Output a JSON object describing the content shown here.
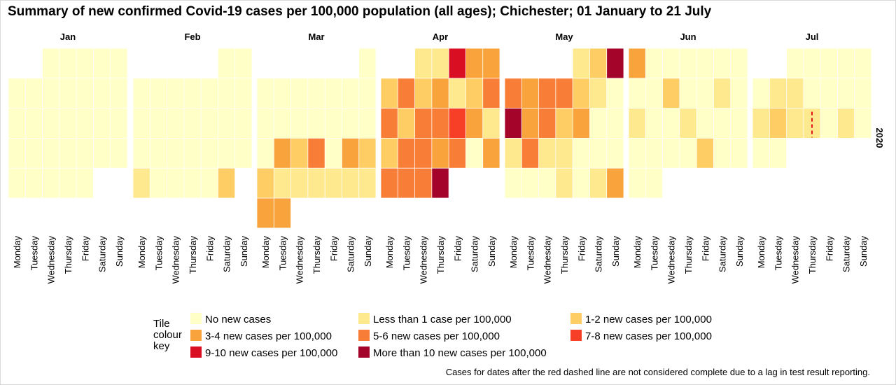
{
  "title": "Summary of new confirmed Covid-19 cases per 100,000 population (all ages); Chichester; 01 January to 21 July",
  "footnote": "Cases for dates after the red dashed line are not considered complete due to a lag in test result reporting.",
  "chart_data": {
    "type": "heatmap",
    "layout": "calendar",
    "year_label": "2020",
    "months": [
      {
        "label": "Jan",
        "weeks": [
          [
            null,
            null,
            0,
            0,
            0,
            0,
            0
          ],
          [
            0,
            0,
            0,
            0,
            0,
            0,
            0
          ],
          [
            0,
            0,
            0,
            0,
            0,
            0,
            0
          ],
          [
            0,
            0,
            0,
            0,
            0,
            0,
            0
          ],
          [
            0,
            0,
            0,
            0,
            0,
            null,
            null
          ]
        ]
      },
      {
        "label": "Feb",
        "weeks": [
          [
            null,
            null,
            null,
            null,
            null,
            0,
            0
          ],
          [
            0,
            0,
            0,
            0,
            0,
            0,
            0
          ],
          [
            0,
            0,
            0,
            0,
            0,
            0,
            0
          ],
          [
            0,
            0,
            0,
            0,
            0,
            0,
            0
          ],
          [
            1,
            0,
            0,
            0,
            0,
            2,
            null
          ]
        ]
      },
      {
        "label": "Mar",
        "weeks": [
          [
            null,
            null,
            null,
            null,
            null,
            null,
            0
          ],
          [
            0,
            0,
            0,
            0,
            0,
            0,
            0
          ],
          [
            0,
            0,
            0,
            0,
            0,
            0,
            0
          ],
          [
            0,
            3,
            2,
            4,
            0,
            3,
            2
          ],
          [
            2,
            1,
            1,
            1,
            1,
            1,
            1
          ],
          [
            3,
            3,
            null,
            null,
            null,
            null,
            null
          ]
        ]
      },
      {
        "label": "Apr",
        "weeks": [
          [
            null,
            null,
            1,
            1,
            6,
            3,
            3
          ],
          [
            2,
            4,
            2,
            3,
            1,
            2,
            4
          ],
          [
            4,
            2,
            4,
            4,
            5,
            3,
            1
          ],
          [
            2,
            4,
            4,
            3,
            4,
            0,
            3
          ],
          [
            4,
            4,
            4,
            7,
            null,
            null,
            null
          ]
        ]
      },
      {
        "label": "May",
        "weeks": [
          [
            null,
            null,
            null,
            null,
            1,
            2,
            7
          ],
          [
            4,
            3,
            4,
            4,
            2,
            1,
            0
          ],
          [
            7,
            3,
            4,
            2,
            3,
            0,
            0
          ],
          [
            1,
            4,
            1,
            1,
            0,
            0,
            0
          ],
          [
            0,
            0,
            0,
            1,
            0,
            1,
            3
          ]
        ]
      },
      {
        "label": "Jun",
        "weeks": [
          [
            3,
            0,
            0,
            0,
            0,
            0,
            0
          ],
          [
            0,
            0,
            2,
            0,
            0,
            1,
            0
          ],
          [
            1,
            0,
            0,
            1,
            0,
            0,
            0
          ],
          [
            0,
            0,
            0,
            0,
            2,
            0,
            0
          ],
          [
            0,
            0,
            null,
            null,
            null,
            null,
            null
          ]
        ]
      },
      {
        "label": "Jul",
        "weeks": [
          [
            null,
            null,
            0,
            0,
            0,
            0,
            0
          ],
          [
            0,
            1,
            1,
            0,
            0,
            0,
            0
          ],
          [
            1,
            2,
            1,
            1,
            0,
            1,
            0
          ],
          [
            0,
            0,
            null,
            null,
            null,
            null,
            null
          ]
        ]
      }
    ],
    "day_labels": [
      "Monday",
      "Tuesday",
      "Wednesday",
      "Thursday",
      "Friday",
      "Saturday",
      "Sunday"
    ],
    "incomplete_after": {
      "month": "Jul",
      "week": 2,
      "day": 3
    },
    "legend": {
      "title_lines": [
        "Tile",
        "colour",
        "key"
      ],
      "items": [
        {
          "label": "No new cases",
          "color": "#FFFFC8"
        },
        {
          "label": "Less than 1 case per 100,000",
          "color": "#FEE98F"
        },
        {
          "label": "1-2 new cases per 100,000",
          "color": "#FECE65"
        },
        {
          "label": "3-4 new cases per 100,000",
          "color": "#F9A33C"
        },
        {
          "label": "5-6 new cases per 100,000",
          "color": "#F87D36"
        },
        {
          "label": "7-8 new cases per 100,000",
          "color": "#F73F27"
        },
        {
          "label": "9-10 new cases per 100,000",
          "color": "#DA0E22"
        },
        {
          "label": "More than 10 new cases per 100,000",
          "color": "#A5042A"
        }
      ]
    },
    "marker_color": "#E5121A"
  }
}
